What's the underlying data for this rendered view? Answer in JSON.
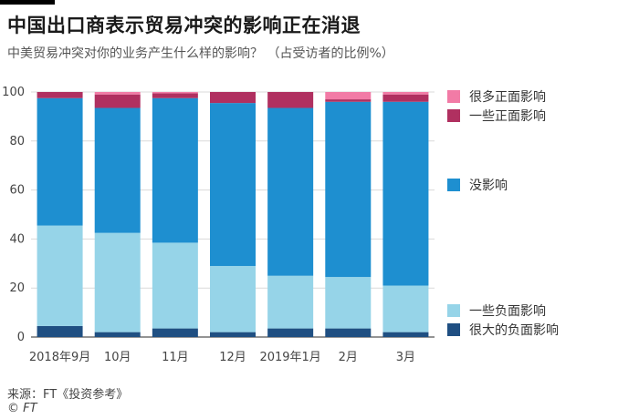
{
  "header": {
    "title": "中国出口商表示贸易冲突的影响正在消退",
    "subtitle": "中美贸易冲突对你的业务产生什么样的影响？ （占受访者的比例%）"
  },
  "footer": {
    "source": "来源：FT《投资参考》",
    "credit": "© FT"
  },
  "chart_data": {
    "type": "bar",
    "stacked": true,
    "categories": [
      "2018年9月",
      "10月",
      "11月",
      "12月",
      "2019年1月",
      "2月",
      "3月"
    ],
    "ylim": [
      0,
      100
    ],
    "yticks": [
      0,
      20,
      40,
      60,
      80,
      100
    ],
    "grid": true,
    "legend_position": "right",
    "series": [
      {
        "name": "很大的负面影响",
        "color": "#1f4f82",
        "values": [
          4.5,
          2.0,
          3.5,
          2.0,
          3.5,
          3.5,
          2.0
        ]
      },
      {
        "name": "一些负面影响",
        "color": "#96d4e8",
        "values": [
          41.0,
          40.5,
          35.0,
          27.0,
          21.5,
          21.0,
          19.0
        ]
      },
      {
        "name": "没影响",
        "color": "#1e8fd0",
        "values": [
          52.0,
          51.0,
          59.0,
          66.5,
          68.5,
          71.5,
          75.0
        ]
      },
      {
        "name": "一些正面影响",
        "color": "#b03060",
        "values": [
          2.5,
          5.5,
          2.0,
          4.5,
          6.5,
          1.0,
          3.0
        ]
      },
      {
        "name": "很多正面影响",
        "color": "#f27ba6",
        "values": [
          0.0,
          1.0,
          0.5,
          0.0,
          0.0,
          3.0,
          1.0
        ]
      }
    ]
  }
}
